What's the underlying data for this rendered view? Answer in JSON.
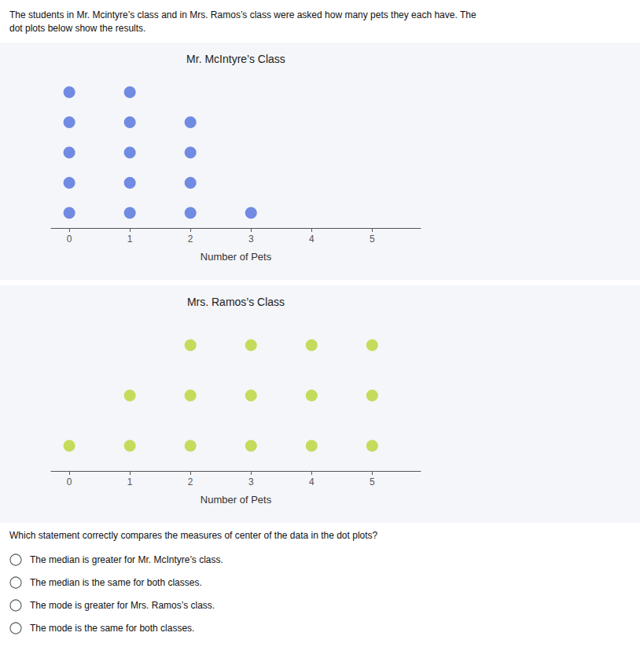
{
  "chart_data": [
    {
      "type": "dot_plot",
      "title": "Mr. McIntyre’s Class",
      "xlabel": "Number of Pets",
      "x": [
        0,
        1,
        2,
        3
      ],
      "values": [
        5,
        5,
        4,
        1
      ],
      "xlim": [
        -0.3,
        5.8
      ],
      "xticks": [
        0,
        1,
        2,
        3,
        4,
        5
      ],
      "ylim": [
        0.5,
        5.5
      ],
      "tick_labels": "x",
      "grid": false,
      "annotations": [
        "The students in Mr. Mcintyre’s class and in Mrs. Ramos’s class were asked how many pets they each have. The\ndot plots below show the results."
      ]
    },
    {
      "type": "dot_plot",
      "title": "Mrs. Ramos’s Class",
      "xlabel": "Number of Pets",
      "x": [
        0,
        1,
        2,
        3,
        4,
        5
      ],
      "values": [
        1,
        2,
        3,
        3,
        3,
        3
      ],
      "xlim": [
        -0.3,
        5.8
      ],
      "xticks": [
        0,
        1,
        2,
        3,
        4,
        5
      ],
      "ylim": [
        0.5,
        3.5
      ],
      "tick_labels": "x",
      "grid": false,
      "annotations": [
        "Which statement correctly compares the measures of center of the data in the dot plots?",
        "The median is greater for Mr. McIntyre’s class.",
        "The median is the same for both classes.",
        "The mode is greater for Mrs. Ramos’s class.",
        "The mode is the same for both classes."
      ]
    }
  ]
}
